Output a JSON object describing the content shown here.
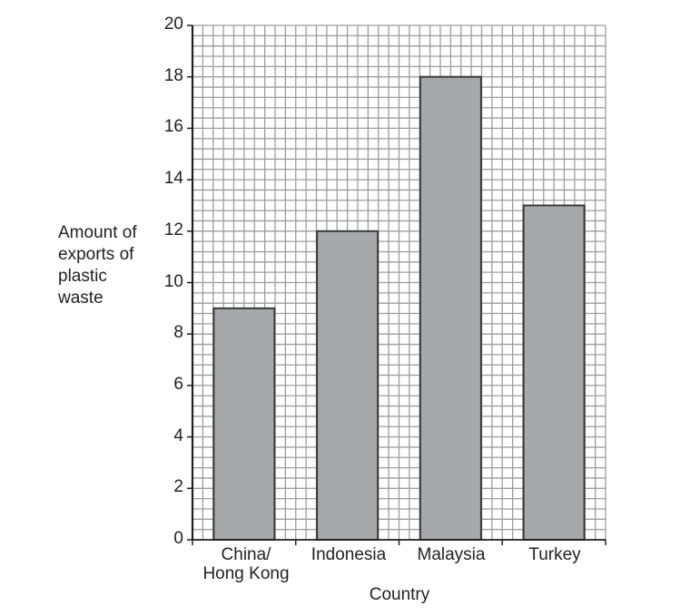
{
  "chart_data": {
    "type": "bar",
    "title": "",
    "xlabel": "Country",
    "ylabel": "Amount of exports of plastic waste",
    "ylabel_lines": [
      "Amount of",
      "exports of",
      "plastic",
      "waste"
    ],
    "categories": [
      "China/ Hong Kong",
      "Indonesia",
      "Malaysia",
      "Turkey"
    ],
    "category_lines": [
      [
        "China/",
        "Hong Kong"
      ],
      [
        "Indonesia"
      ],
      [
        "Malaysia"
      ],
      [
        "Turkey"
      ]
    ],
    "values": [
      9,
      12,
      18,
      13
    ],
    "ylim": [
      0,
      20
    ],
    "yticks": [
      0,
      2,
      4,
      6,
      8,
      10,
      12,
      14,
      16,
      18,
      20
    ],
    "grid": true,
    "legend": null
  },
  "colors": {
    "bar_fill": "#a7a8ac",
    "bar_stroke": "#3a3a3a",
    "grid_line": "#9d9d9d",
    "axis": "#231f20",
    "text": "#231f20"
  }
}
